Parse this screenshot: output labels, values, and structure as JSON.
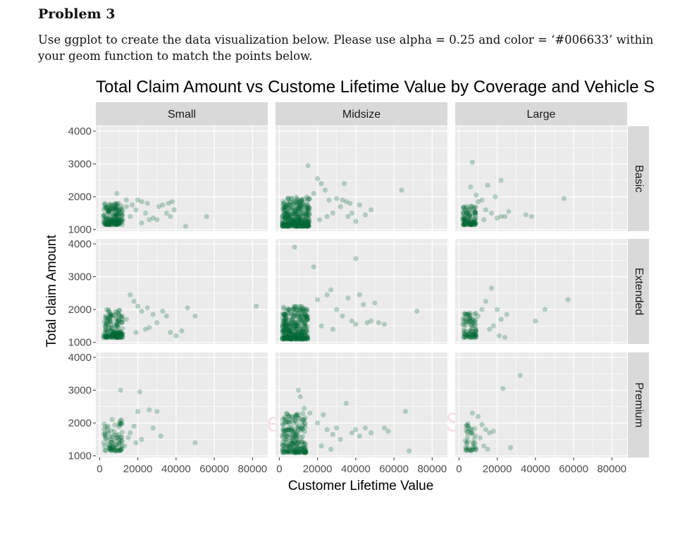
{
  "document": {
    "heading": "Problem 3",
    "instructions": "Use ggplot to create the data visualization below. Please use alpha = 0.25 and color = ‘#006633’ within your geom function to match the points below."
  },
  "watermark": "Created by Paint S",
  "chart_data": {
    "type": "scatter",
    "title": "Total Claim Amount vs Custome Lifetime Value by Coverage and Vehicle S",
    "xlabel": "Customer Lifetime Value",
    "ylabel": "Total claim Amount",
    "point_color": "#006633",
    "point_alpha": 0.25,
    "xlim": [
      -2000,
      88000
    ],
    "ylim": [
      950,
      4150
    ],
    "x_ticks": [
      0,
      20000,
      40000,
      60000,
      80000
    ],
    "x_tick_labels": [
      "0",
      "20000",
      "40000",
      "60000",
      "80000"
    ],
    "y_ticks": [
      1000,
      2000,
      3000,
      4000
    ],
    "y_tick_labels": [
      "1000",
      "2000",
      "3000",
      "4000"
    ],
    "facet_cols": [
      "Small",
      "Midsize",
      "Large"
    ],
    "facet_rows": [
      "Basic",
      "Extended",
      "Premium"
    ],
    "grid": true,
    "panels": [
      {
        "row": "Basic",
        "col": "Small",
        "cluster": {
          "x": [
            2000,
            12000
          ],
          "y": [
            1150,
            1800
          ],
          "n": 180
        },
        "points": [
          [
            9000,
            2100
          ],
          [
            14000,
            1900
          ],
          [
            20000,
            1900
          ],
          [
            22000,
            1850
          ],
          [
            25000,
            1800
          ],
          [
            31000,
            1700
          ],
          [
            33000,
            1750
          ],
          [
            36000,
            1800
          ],
          [
            38000,
            1850
          ],
          [
            39000,
            1600
          ],
          [
            35000,
            1500
          ],
          [
            30000,
            1300
          ],
          [
            28000,
            1350
          ],
          [
            24000,
            1500
          ],
          [
            19000,
            1600
          ],
          [
            17000,
            1750
          ],
          [
            45000,
            1100
          ],
          [
            56000,
            1400
          ],
          [
            37000,
            1400
          ],
          [
            26000,
            1300
          ],
          [
            22000,
            1200
          ],
          [
            16000,
            1400
          ],
          [
            12000,
            1600
          ],
          [
            14000,
            1700
          ]
        ]
      },
      {
        "row": "Basic",
        "col": "Midsize",
        "cluster": {
          "x": [
            1500,
            16000
          ],
          "y": [
            1100,
            2000
          ],
          "n": 340
        },
        "points": [
          [
            15000,
            2950
          ],
          [
            20000,
            2550
          ],
          [
            22000,
            2400
          ],
          [
            24000,
            2200
          ],
          [
            26000,
            1900
          ],
          [
            30000,
            1950
          ],
          [
            33000,
            1900
          ],
          [
            35000,
            1850
          ],
          [
            37000,
            1800
          ],
          [
            38000,
            1500
          ],
          [
            36000,
            1400
          ],
          [
            42000,
            1750
          ],
          [
            40000,
            1250
          ],
          [
            45000,
            1450
          ],
          [
            48000,
            1600
          ],
          [
            64000,
            2200
          ],
          [
            28000,
            1500
          ],
          [
            32000,
            1700
          ],
          [
            25000,
            1400
          ],
          [
            21000,
            1300
          ],
          [
            18000,
            2100
          ],
          [
            34000,
            2400
          ]
        ]
      },
      {
        "row": "Basic",
        "col": "Large",
        "cluster": {
          "x": [
            2000,
            9000
          ],
          "y": [
            1150,
            1750
          ],
          "n": 110
        },
        "points": [
          [
            7000,
            3050
          ],
          [
            6000,
            2300
          ],
          [
            15000,
            2350
          ],
          [
            22000,
            2500
          ],
          [
            19000,
            2000
          ],
          [
            12000,
            1900
          ],
          [
            10000,
            1850
          ],
          [
            14000,
            1600
          ],
          [
            17000,
            1500
          ],
          [
            22000,
            1400
          ],
          [
            26000,
            1550
          ],
          [
            24000,
            1400
          ],
          [
            20000,
            1350
          ],
          [
            35000,
            1450
          ],
          [
            38000,
            1400
          ],
          [
            55000,
            1950
          ],
          [
            9000,
            2050
          ],
          [
            13000,
            1300
          ]
        ]
      },
      {
        "row": "Extended",
        "col": "Small",
        "cluster": {
          "x": [
            2000,
            12000
          ],
          "y": [
            1150,
            2000
          ],
          "n": 170
        },
        "points": [
          [
            16000,
            2450
          ],
          [
            18000,
            2250
          ],
          [
            20000,
            2100
          ],
          [
            22000,
            1950
          ],
          [
            25000,
            2050
          ],
          [
            28000,
            1850
          ],
          [
            30000,
            1600
          ],
          [
            33000,
            1950
          ],
          [
            35000,
            1800
          ],
          [
            37000,
            1300
          ],
          [
            40000,
            1200
          ],
          [
            43000,
            1350
          ],
          [
            46000,
            2050
          ],
          [
            50000,
            1800
          ],
          [
            82000,
            2100
          ],
          [
            26000,
            1450
          ],
          [
            24000,
            1400
          ],
          [
            19000,
            1300
          ],
          [
            14000,
            1700
          ]
        ]
      },
      {
        "row": "Extended",
        "col": "Midsize",
        "cluster": {
          "x": [
            1500,
            15000
          ],
          "y": [
            1100,
            2100
          ],
          "n": 340
        },
        "points": [
          [
            8000,
            3900
          ],
          [
            40000,
            3550
          ],
          [
            18000,
            3300
          ],
          [
            20000,
            2300
          ],
          [
            25000,
            2450
          ],
          [
            27000,
            2600
          ],
          [
            30000,
            2000
          ],
          [
            33000,
            1800
          ],
          [
            36000,
            2350
          ],
          [
            38000,
            1650
          ],
          [
            40000,
            1550
          ],
          [
            42000,
            2450
          ],
          [
            44000,
            2150
          ],
          [
            46000,
            1600
          ],
          [
            48000,
            1650
          ],
          [
            50000,
            2200
          ],
          [
            52000,
            1600
          ],
          [
            55000,
            1550
          ],
          [
            72000,
            1950
          ],
          [
            22000,
            1500
          ],
          [
            28000,
            1400
          ]
        ]
      },
      {
        "row": "Extended",
        "col": "Large",
        "cluster": {
          "x": [
            2000,
            9000
          ],
          "y": [
            1150,
            1900
          ],
          "n": 90
        },
        "points": [
          [
            17000,
            2650
          ],
          [
            14000,
            2250
          ],
          [
            20000,
            2000
          ],
          [
            22000,
            1700
          ],
          [
            25000,
            1850
          ],
          [
            18000,
            1500
          ],
          [
            16000,
            1400
          ],
          [
            21000,
            1200
          ],
          [
            24000,
            1150
          ],
          [
            40000,
            1650
          ],
          [
            45000,
            2000
          ],
          [
            57000,
            2300
          ],
          [
            12000,
            2000
          ],
          [
            10000,
            1800
          ]
        ]
      },
      {
        "row": "Premium",
        "col": "Small",
        "cluster": {
          "x": [
            2000,
            12000
          ],
          "y": [
            1150,
            2150
          ],
          "n": 90
        },
        "points": [
          [
            11000,
            3000
          ],
          [
            21000,
            2950
          ],
          [
            20000,
            2350
          ],
          [
            26000,
            2400
          ],
          [
            30000,
            2350
          ],
          [
            28000,
            1850
          ],
          [
            32000,
            1600
          ],
          [
            18000,
            1900
          ],
          [
            16000,
            1700
          ],
          [
            22000,
            1500
          ],
          [
            19000,
            1400
          ],
          [
            50000,
            1400
          ],
          [
            15000,
            1550
          ],
          [
            13000,
            1300
          ]
        ]
      },
      {
        "row": "Premium",
        "col": "Midsize",
        "cluster": {
          "x": [
            1500,
            14000
          ],
          "y": [
            1100,
            2300
          ],
          "n": 220
        },
        "points": [
          [
            10000,
            3000
          ],
          [
            11000,
            2800
          ],
          [
            13000,
            2450
          ],
          [
            16000,
            2300
          ],
          [
            20000,
            2000
          ],
          [
            23000,
            2250
          ],
          [
            25000,
            1800
          ],
          [
            28000,
            1650
          ],
          [
            30000,
            1850
          ],
          [
            32000,
            1500
          ],
          [
            35000,
            2600
          ],
          [
            38000,
            1700
          ],
          [
            40000,
            1800
          ],
          [
            42000,
            1600
          ],
          [
            45000,
            1850
          ],
          [
            48000,
            1700
          ],
          [
            55000,
            1850
          ],
          [
            57000,
            1750
          ],
          [
            66000,
            2350
          ],
          [
            68000,
            1150
          ],
          [
            22000,
            1300
          ],
          [
            27000,
            1200
          ]
        ]
      },
      {
        "row": "Premium",
        "col": "Large",
        "cluster": {
          "x": [
            3000,
            9000
          ],
          "y": [
            1150,
            2000
          ],
          "n": 40
        },
        "points": [
          [
            32000,
            3450
          ],
          [
            23000,
            3050
          ],
          [
            7000,
            2300
          ],
          [
            10000,
            2200
          ],
          [
            12000,
            1950
          ],
          [
            14000,
            1800
          ],
          [
            16000,
            1700
          ],
          [
            18000,
            1750
          ],
          [
            15000,
            1200
          ],
          [
            13000,
            1300
          ],
          [
            27000,
            1250
          ],
          [
            11000,
            1550
          ]
        ]
      }
    ]
  }
}
